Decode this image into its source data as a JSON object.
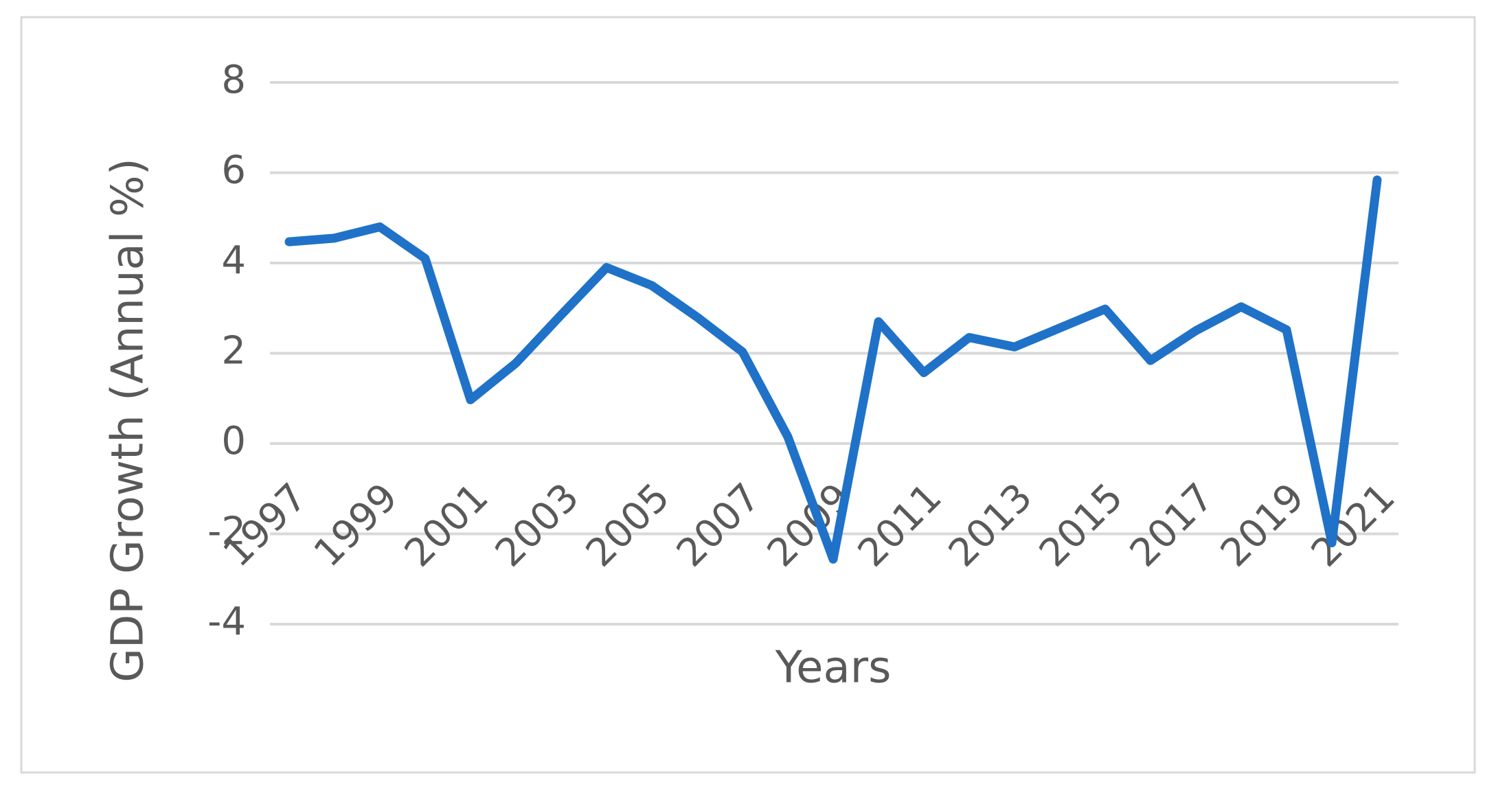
{
  "chart_data": {
    "type": "line",
    "y_label": "GDP Growth (Annual %)",
    "x_label": "Years",
    "categories": [
      "1997",
      null,
      "1999",
      null,
      "2001",
      null,
      "2003",
      null,
      "2005",
      null,
      "2007",
      null,
      "2009",
      null,
      "2011",
      null,
      "2013",
      null,
      "2015",
      null,
      "2017",
      null,
      "2019",
      null,
      "2021"
    ],
    "values": [
      4.47,
      4.55,
      4.8,
      4.1,
      0.97,
      1.78,
      2.85,
      3.9,
      3.5,
      2.8,
      2.03,
      0.15,
      -2.56,
      2.7,
      1.57,
      2.35,
      2.14,
      2.56,
      2.98,
      1.84,
      2.5,
      3.03,
      2.52,
      -2.2,
      5.84
    ],
    "color": "#1f72c8",
    "ylim": [
      -4,
      8
    ],
    "yticks": [
      -4,
      -2,
      0,
      2,
      4,
      6,
      8
    ],
    "grid": true
  }
}
